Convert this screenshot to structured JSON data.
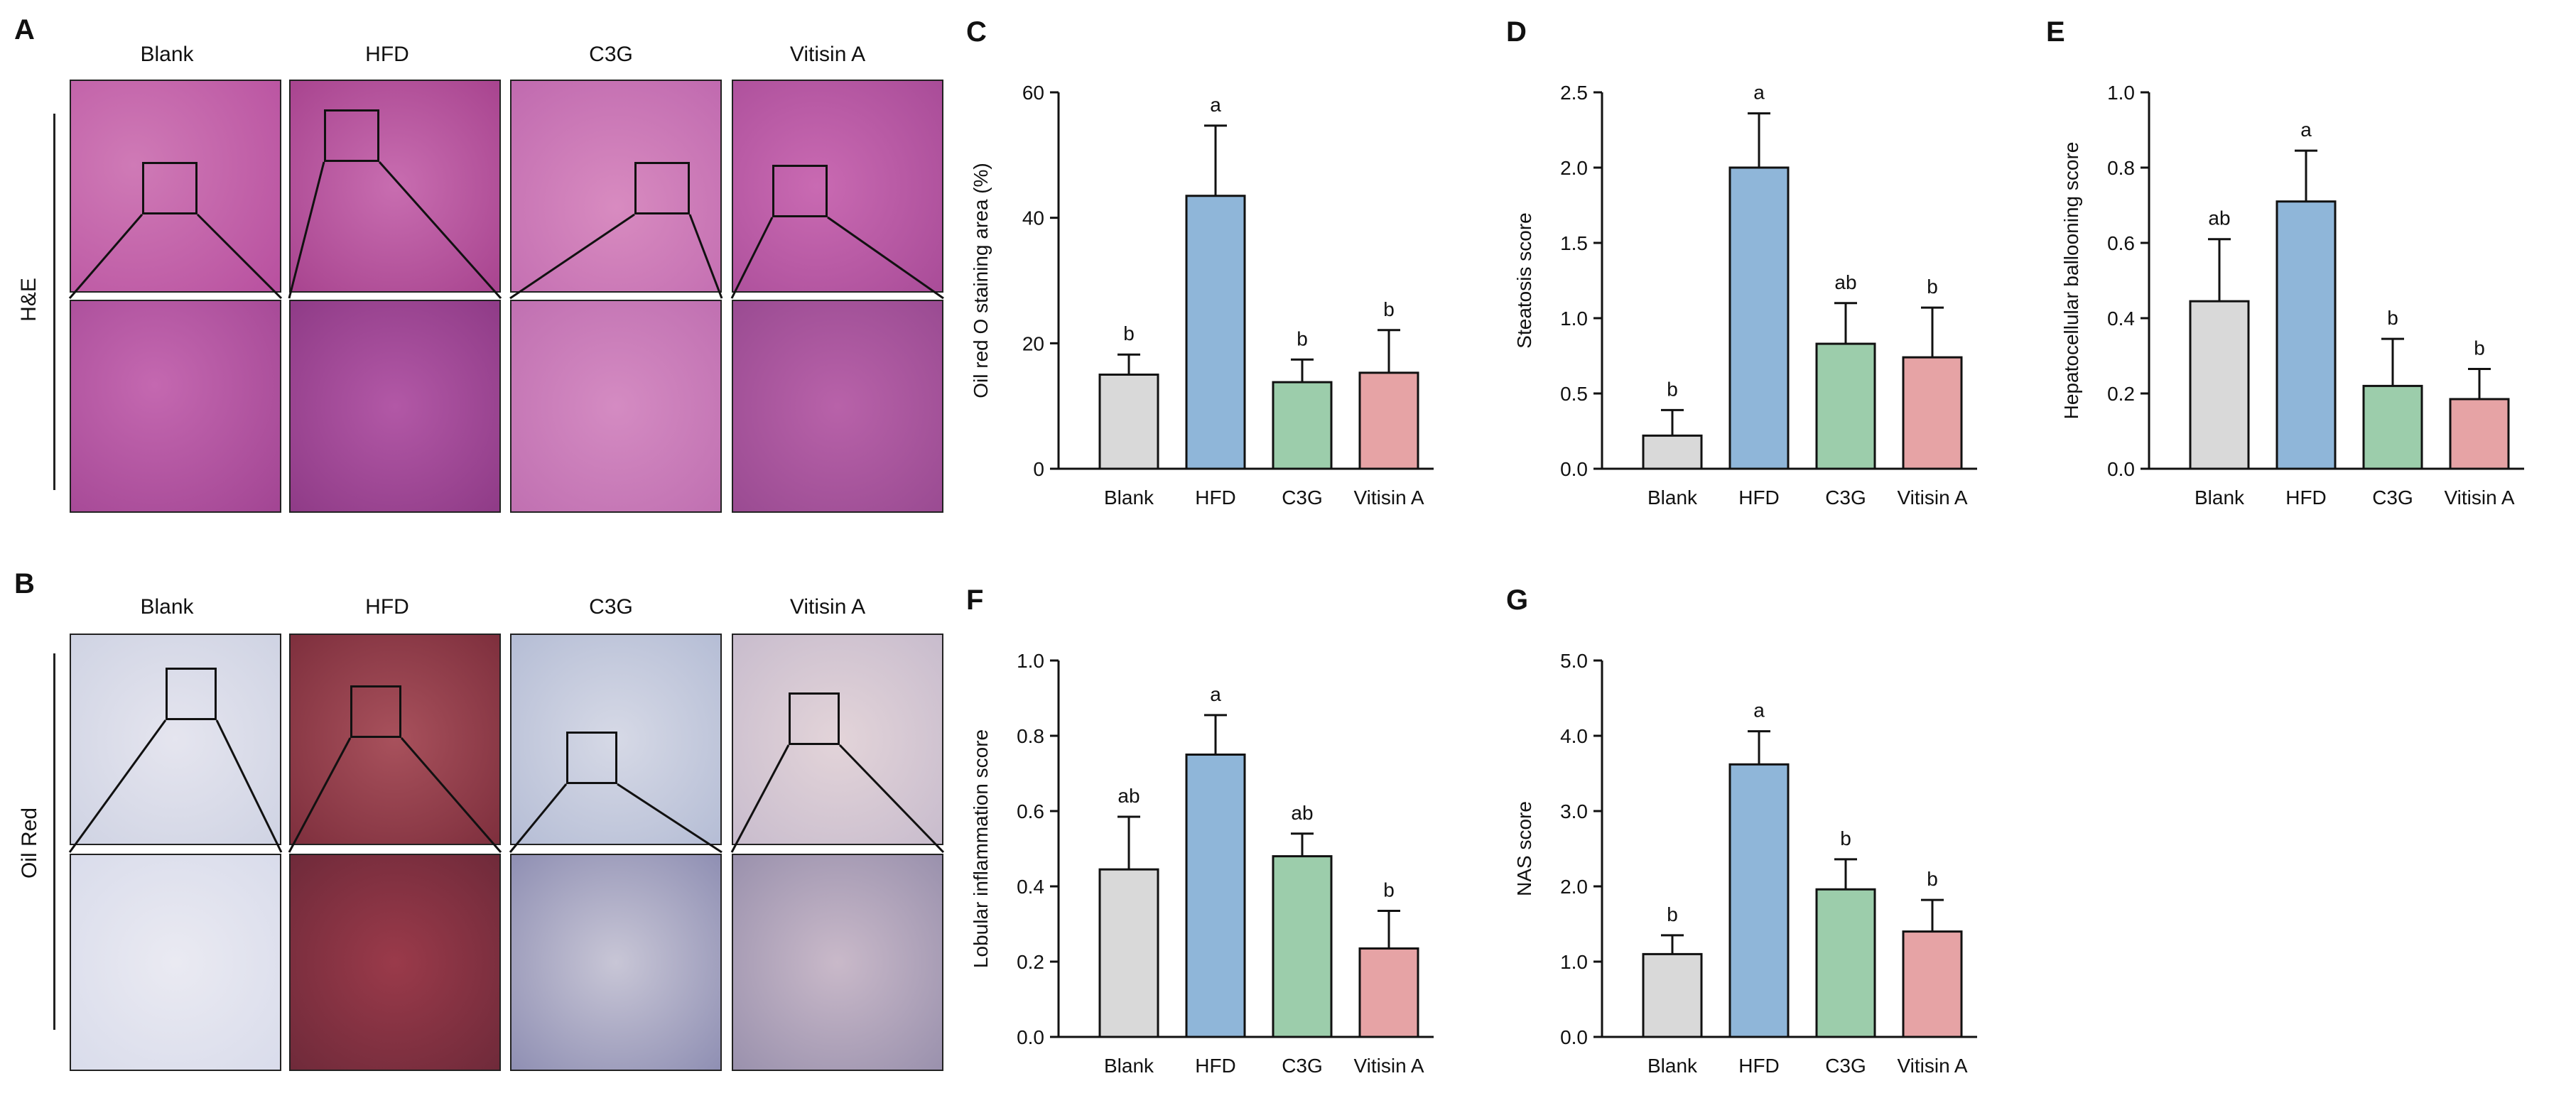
{
  "figure": {
    "panel_a": {
      "letter": "A",
      "row_label": "H&E"
    },
    "panel_b": {
      "letter": "B",
      "row_label": "Oil Red"
    },
    "groups": [
      "Blank",
      "HFD",
      "C3G",
      "Vitisin A"
    ],
    "colors": {
      "Blank": "#d9d9d9",
      "HFD": "#8fb6d9",
      "C3G": "#9ccdab",
      "Vitisin A": "#e6a3a5",
      "he_bg": "#c65fa8",
      "he_low": "#b04a9a",
      "oil_bg": "#d9dde8",
      "oil_hfd": "#9b3b4a"
    }
  },
  "chart_data": [
    {
      "letter": "C",
      "type": "bar",
      "categories": [
        "Blank",
        "HFD",
        "C3G",
        "Vitisin A"
      ],
      "values": [
        15,
        43.5,
        13.8,
        15.3
      ],
      "errors": [
        3.2,
        11.2,
        3.6,
        6.8
      ],
      "sig": [
        "b",
        "a",
        "b",
        "b"
      ],
      "ylabel": "Oil red O staining area (%)",
      "ylim": [
        0,
        60
      ],
      "ticks": [
        0,
        20,
        40,
        60
      ],
      "tick_labels": [
        "0",
        "20",
        "40",
        "60"
      ]
    },
    {
      "letter": "D",
      "type": "bar",
      "categories": [
        "Blank",
        "HFD",
        "C3G",
        "Vitisin A"
      ],
      "values": [
        0.22,
        2.0,
        0.83,
        0.74
      ],
      "errors": [
        0.17,
        0.36,
        0.27,
        0.33
      ],
      "sig": [
        "b",
        "a",
        "ab",
        "b"
      ],
      "ylabel": "Steatosis score",
      "ylim": [
        0,
        2.5
      ],
      "ticks": [
        0,
        0.5,
        1.0,
        1.5,
        2.0,
        2.5
      ],
      "tick_labels": [
        "0.0",
        "0.5",
        "1.0",
        "1.5",
        "2.0",
        "2.5"
      ]
    },
    {
      "letter": "E",
      "type": "bar",
      "categories": [
        "Blank",
        "HFD",
        "C3G",
        "Vitisin A"
      ],
      "values": [
        0.445,
        0.71,
        0.22,
        0.185
      ],
      "errors": [
        0.165,
        0.135,
        0.125,
        0.08
      ],
      "sig": [
        "ab",
        "a",
        "b",
        "b"
      ],
      "ylabel": "Hepatocellular ballooning score",
      "ylim": [
        0,
        1.0
      ],
      "ticks": [
        0,
        0.2,
        0.4,
        0.6,
        0.8,
        1.0
      ],
      "tick_labels": [
        "0.0",
        "0.2",
        "0.4",
        "0.6",
        "0.8",
        "1.0"
      ]
    },
    {
      "letter": "F",
      "type": "bar",
      "categories": [
        "Blank",
        "HFD",
        "C3G",
        "Vitisin A"
      ],
      "values": [
        0.445,
        0.75,
        0.48,
        0.235
      ],
      "errors": [
        0.14,
        0.105,
        0.06,
        0.1
      ],
      "sig": [
        "ab",
        "a",
        "ab",
        "b"
      ],
      "ylabel": "Lobular inflammation score",
      "ylim": [
        0,
        1.0
      ],
      "ticks": [
        0,
        0.2,
        0.4,
        0.6,
        0.8,
        1.0
      ],
      "tick_labels": [
        "0.0",
        "0.2",
        "0.4",
        "0.6",
        "0.8",
        "1.0"
      ]
    },
    {
      "letter": "G",
      "type": "bar",
      "categories": [
        "Blank",
        "HFD",
        "C3G",
        "Vitisin A"
      ],
      "values": [
        1.1,
        3.62,
        1.96,
        1.4
      ],
      "errors": [
        0.25,
        0.44,
        0.4,
        0.42
      ],
      "sig": [
        "b",
        "a",
        "b",
        "b"
      ],
      "ylabel": "NAS score",
      "ylim": [
        0,
        5.0
      ],
      "ticks": [
        0,
        1,
        2,
        3,
        4,
        5
      ],
      "tick_labels": [
        "0.0",
        "1.0",
        "2.0",
        "3.0",
        "4.0",
        "5.0"
      ]
    }
  ]
}
